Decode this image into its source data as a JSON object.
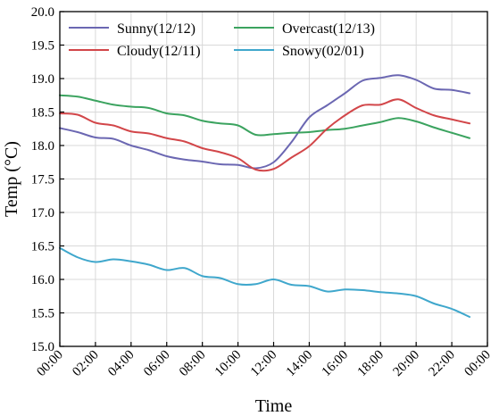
{
  "chart_data": {
    "type": "line",
    "xlabel": "Time",
    "ylabel": "Temp (°C)",
    "xlim": [
      0,
      24
    ],
    "ylim": [
      15.0,
      20.0
    ],
    "xticks": [
      "00:00",
      "02:00",
      "04:00",
      "06:00",
      "08:00",
      "10:00",
      "12:00",
      "14:00",
      "16:00",
      "18:00",
      "20:00",
      "22:00",
      "00:00"
    ],
    "yticks": [
      "15.0",
      "15.5",
      "16.0",
      "16.5",
      "17.0",
      "17.5",
      "18.0",
      "18.5",
      "19.0",
      "19.5",
      "20.0"
    ],
    "legend_position": "top",
    "x_hours": [
      0,
      1,
      2,
      3,
      4,
      5,
      6,
      7,
      8,
      9,
      10,
      11,
      12,
      13,
      14,
      15,
      16,
      17,
      18,
      19,
      20,
      21,
      22,
      23
    ],
    "series": [
      {
        "name": "Sunny(12/12)",
        "color": "#6B67B2",
        "values": [
          18.26,
          18.2,
          18.12,
          18.1,
          18.0,
          17.93,
          17.84,
          17.79,
          17.76,
          17.72,
          17.71,
          17.66,
          17.75,
          18.05,
          18.42,
          18.6,
          18.78,
          18.97,
          19.01,
          19.05,
          18.98,
          18.85,
          18.83,
          18.78
        ]
      },
      {
        "name": "Overcast(12/13)",
        "color": "#3BA35F",
        "values": [
          18.75,
          18.73,
          18.67,
          18.61,
          18.58,
          18.56,
          18.48,
          18.45,
          18.37,
          18.33,
          18.3,
          18.16,
          18.17,
          18.19,
          18.2,
          18.23,
          18.25,
          18.3,
          18.35,
          18.41,
          18.36,
          18.27,
          18.19,
          18.11
        ]
      },
      {
        "name": "Cloudy(12/11)",
        "color": "#D24649",
        "values": [
          18.48,
          18.46,
          18.34,
          18.3,
          18.21,
          18.18,
          18.11,
          18.06,
          17.96,
          17.9,
          17.81,
          17.64,
          17.65,
          17.82,
          17.99,
          18.25,
          18.45,
          18.6,
          18.61,
          18.69,
          18.56,
          18.45,
          18.39,
          18.33
        ]
      },
      {
        "name": "Snowy(02/01)",
        "color": "#3FA7CC",
        "values": [
          16.47,
          16.33,
          16.26,
          16.3,
          16.27,
          16.22,
          16.14,
          16.17,
          16.05,
          16.02,
          15.93,
          15.93,
          16.0,
          15.92,
          15.9,
          15.82,
          15.85,
          15.84,
          15.81,
          15.79,
          15.75,
          15.64,
          15.56,
          15.44
        ]
      }
    ]
  }
}
